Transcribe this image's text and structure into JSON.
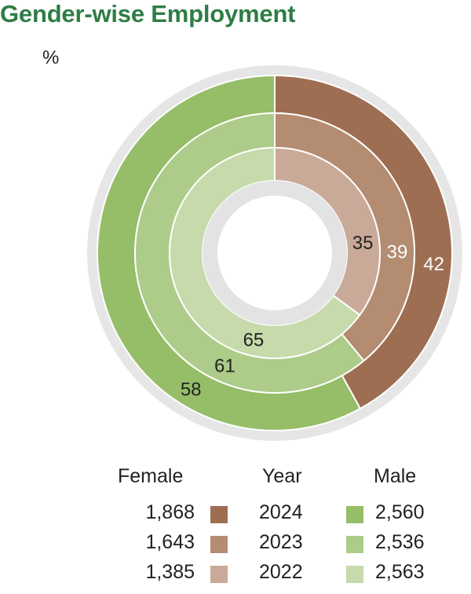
{
  "title": "Gender-wise Employment",
  "unit": "%",
  "chart_data": {
    "type": "pie",
    "subtype": "concentric-donut",
    "title": "Gender-wise Employment",
    "unit": "%",
    "rings": [
      {
        "year": "2024",
        "male_pct": 42,
        "female_pct": 58,
        "male_color": "#9e6e52",
        "female_color": "#96bd68"
      },
      {
        "year": "2023",
        "male_pct": 39,
        "female_pct": 61,
        "male_color": "#b38c71",
        "female_color": "#adcb89"
      },
      {
        "year": "2022",
        "male_pct": 35,
        "female_pct": 65,
        "male_color": "#c9a997",
        "female_color": "#c6daab"
      }
    ]
  },
  "legend": {
    "female_header": "Female",
    "year_header": "Year",
    "male_header": "Male",
    "rows": [
      {
        "female_count": "1,868",
        "female_color": "#9e6e52",
        "year": "2024",
        "male_color": "#96bd68",
        "male_count": "2,560"
      },
      {
        "female_count": "1,643",
        "female_color": "#b38c71",
        "year": "2023",
        "male_color": "#adcb89",
        "male_count": "2,536"
      },
      {
        "female_count": "1,385",
        "female_color": "#c9a997",
        "year": "2022",
        "male_color": "#c6daab",
        "male_count": "2,563"
      }
    ]
  }
}
